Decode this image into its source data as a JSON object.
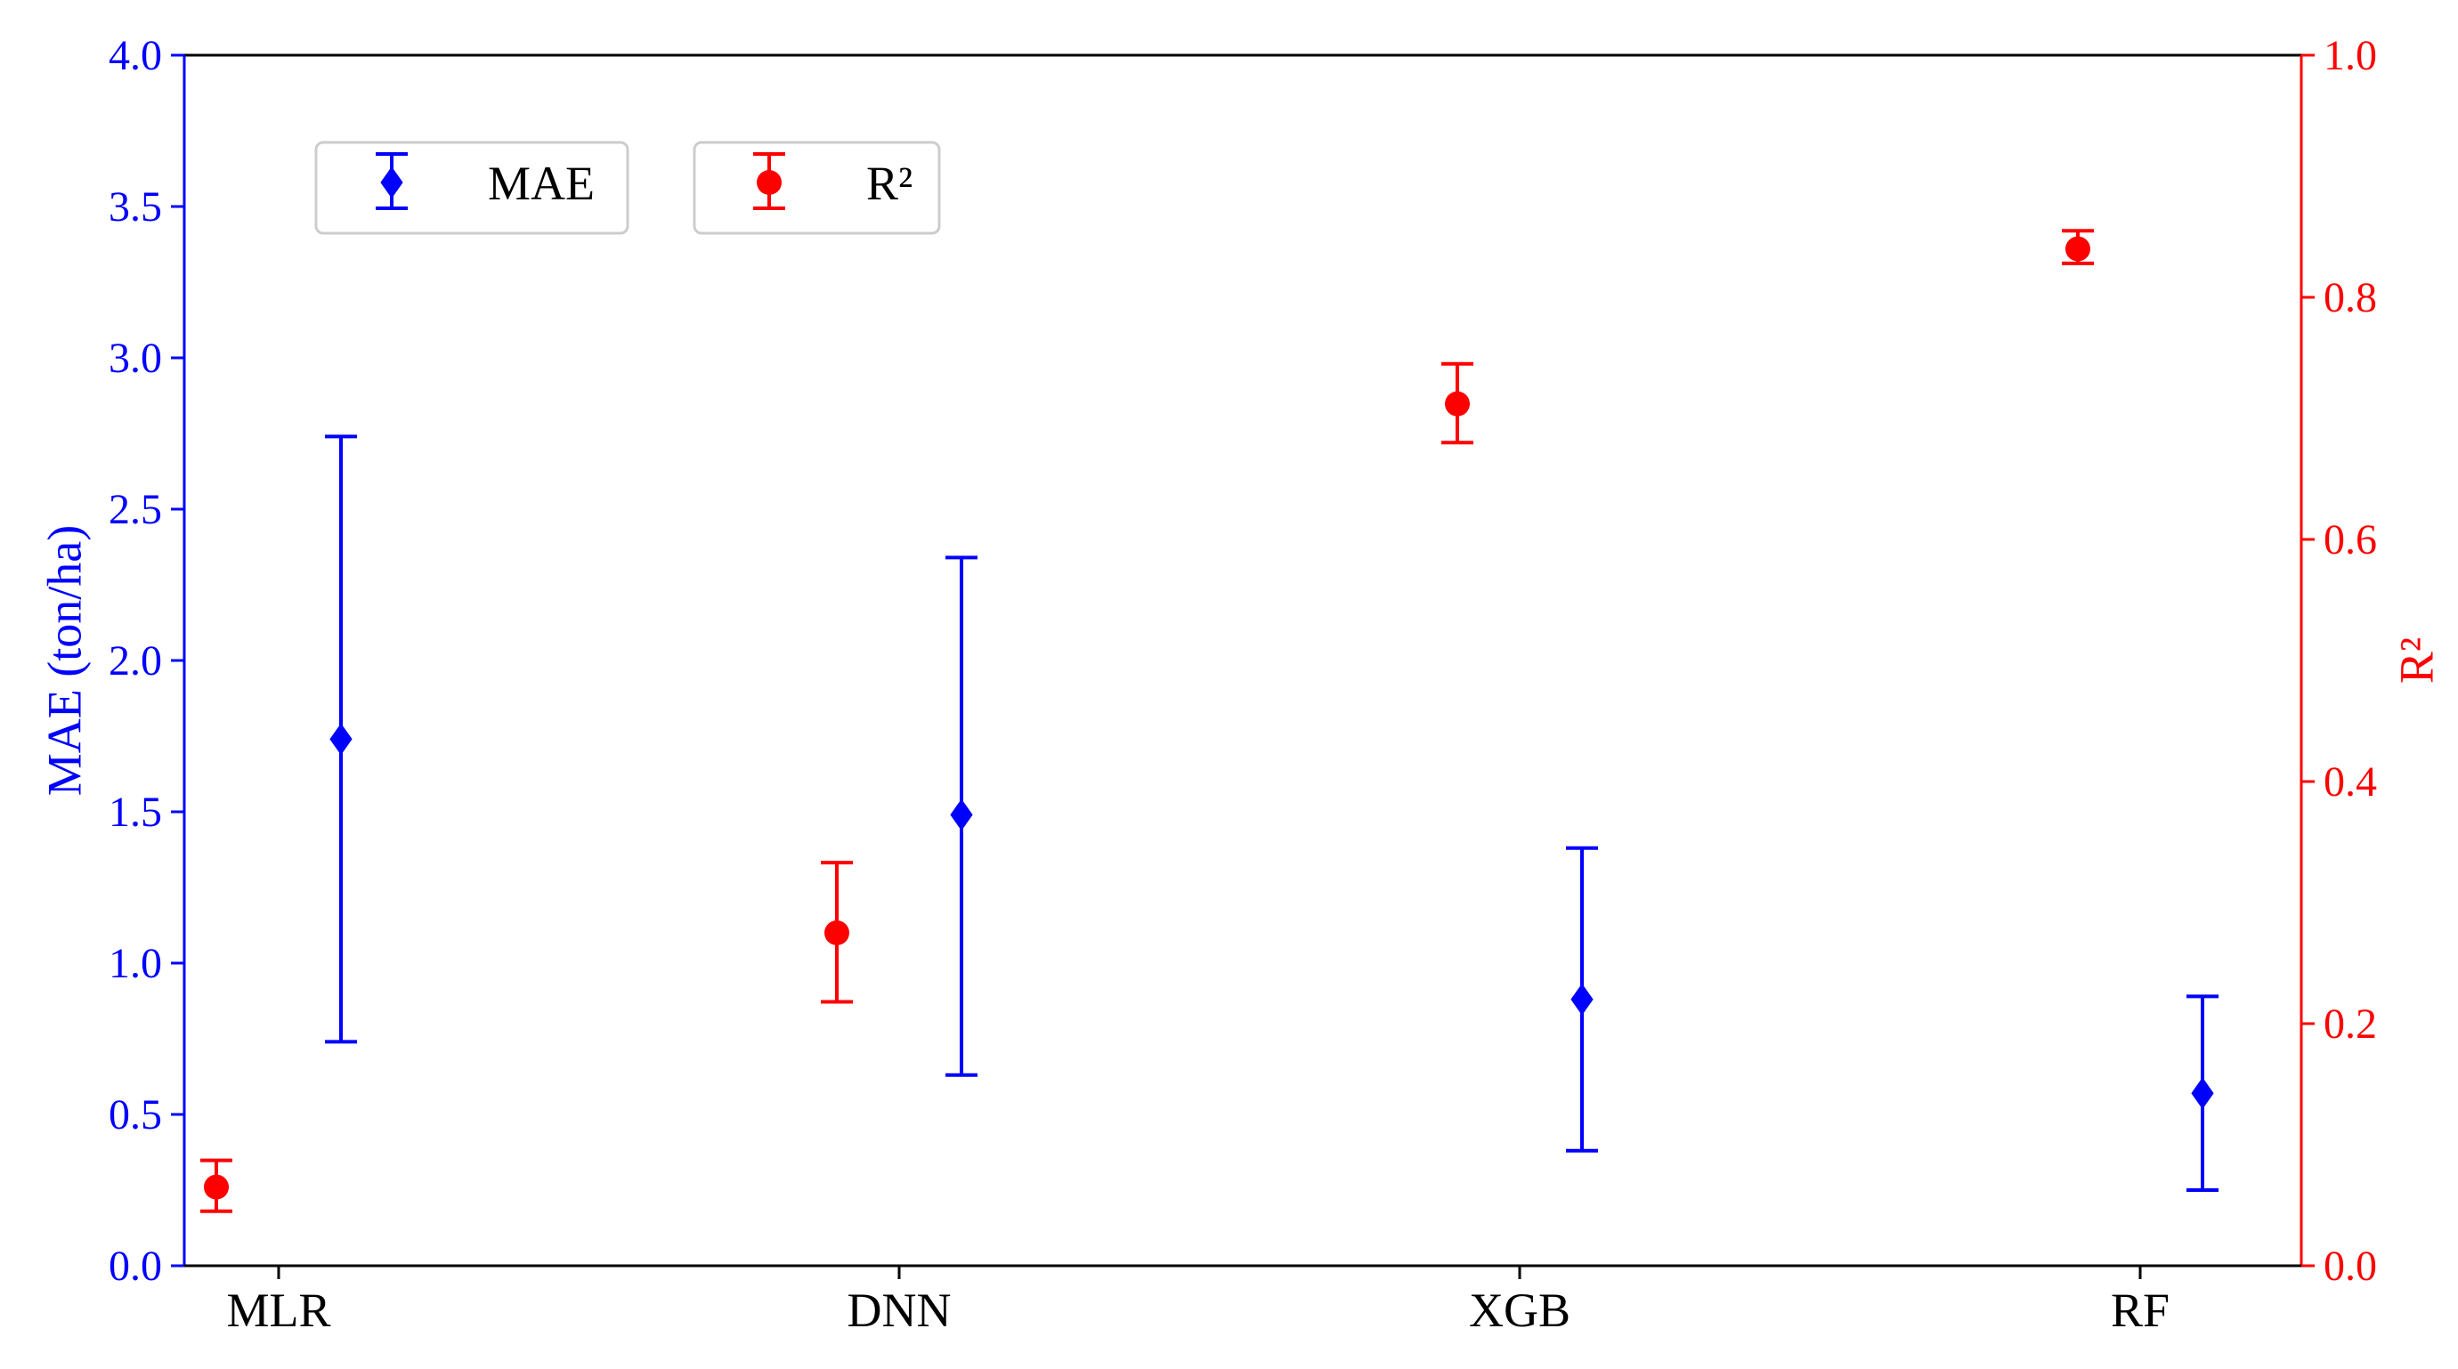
{
  "colors": {
    "mae": "#0000ff",
    "r2": "#ff0000",
    "axis": "#000000",
    "legend_border": "#cccccc"
  },
  "icons": {
    "mae_marker": "diamond-icon",
    "r2_marker": "circle-icon"
  },
  "chart_data": {
    "type": "scatter",
    "title": "",
    "categories": [
      "MLR",
      "DNN",
      "XGB",
      "RF"
    ],
    "x_tick_labels": [
      "MLR",
      "DNN",
      "XGB",
      "RF"
    ],
    "grid": false,
    "legend_position": "top-left",
    "left_axis": {
      "label": "MAE (ton/ha)",
      "range": [
        0,
        4
      ],
      "ticks": [
        0,
        0.5,
        1,
        1.5,
        2,
        2.5,
        3,
        3.5,
        4
      ],
      "tick_labels": [
        "0.0",
        "0.5",
        "1.0",
        "1.5",
        "2.0",
        "2.5",
        "3.0",
        "3.5",
        "4.0"
      ]
    },
    "right_axis": {
      "label": "R²",
      "range": [
        0,
        1
      ],
      "ticks": [
        0,
        0.2,
        0.4,
        0.6,
        0.8,
        1
      ],
      "tick_labels": [
        "0.0",
        "0.2",
        "0.4",
        "0.6",
        "0.8",
        "1.0"
      ]
    },
    "series": [
      {
        "name": "MAE",
        "axis": "left",
        "marker": "diamond",
        "values": [
          1.74,
          1.49,
          0.88,
          0.57
        ],
        "error_low": [
          0.74,
          0.63,
          0.38,
          0.25
        ],
        "error_high": [
          2.74,
          2.34,
          1.38,
          0.89
        ]
      },
      {
        "name": "R²",
        "axis": "right",
        "marker": "circle",
        "values": [
          0.065,
          0.275,
          0.712,
          0.84
        ],
        "error_low": [
          0.045,
          0.218,
          0.68,
          0.828
        ],
        "error_high": [
          0.087,
          0.333,
          0.745,
          0.855
        ]
      }
    ]
  }
}
